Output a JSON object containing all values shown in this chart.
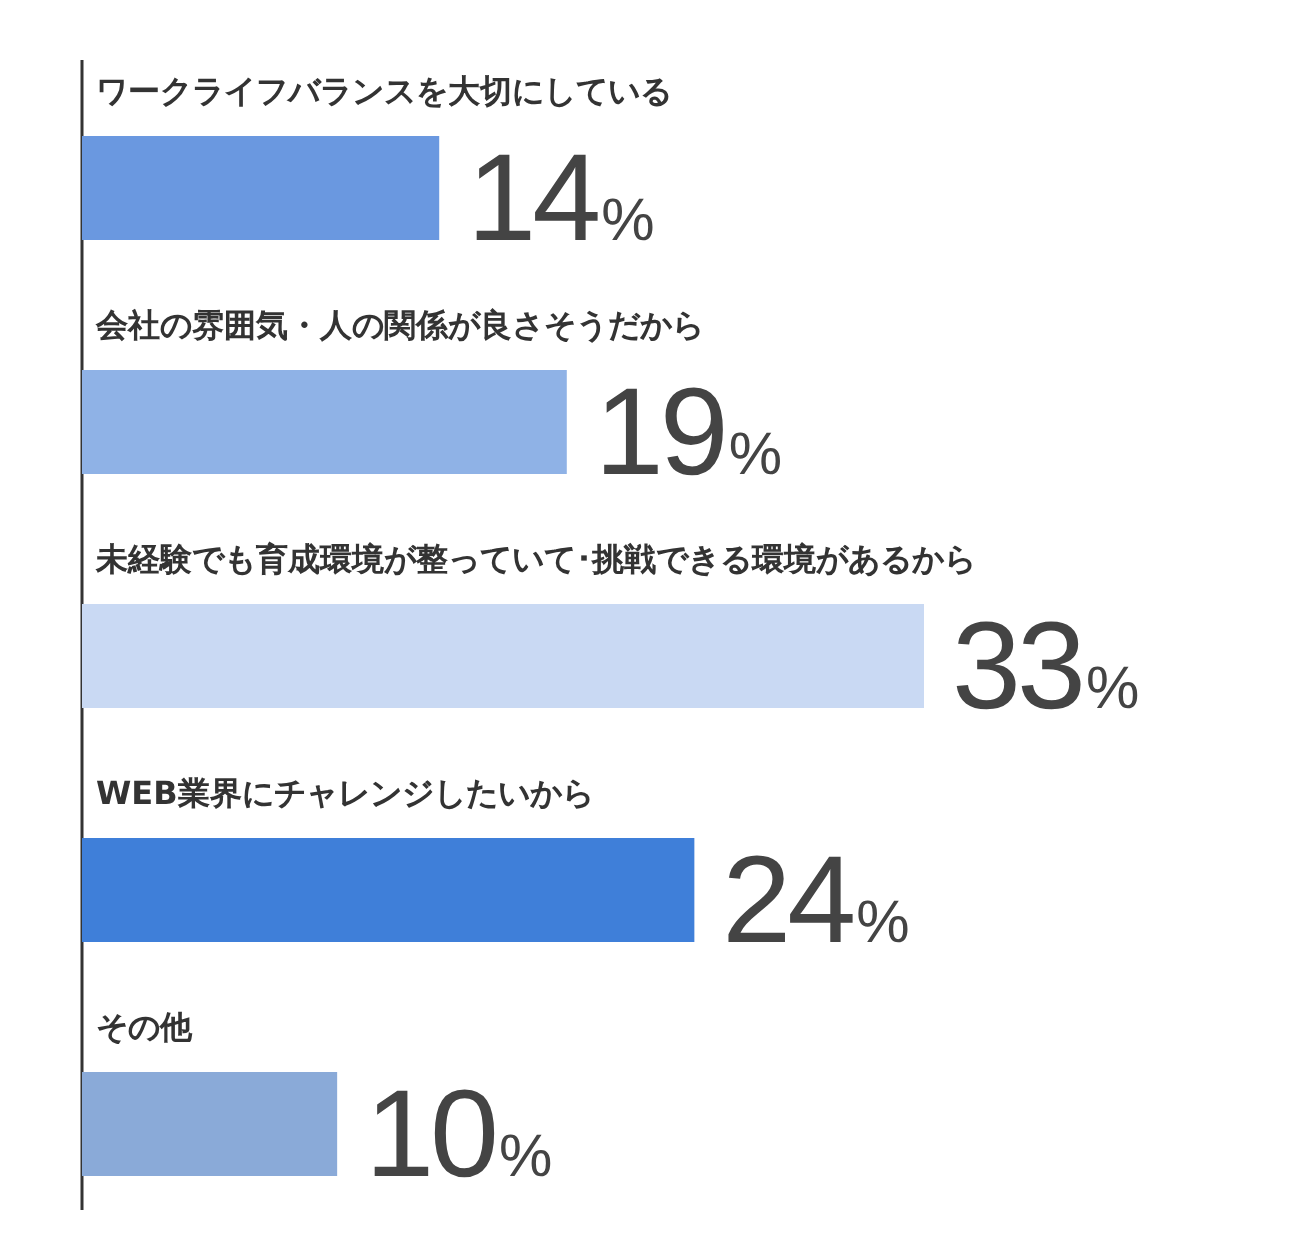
{
  "chart_data": {
    "type": "bar",
    "orientation": "horizontal",
    "categories": [
      "ワークライフバランスを大切にしている",
      "会社の雰囲気・人の関係が良さそうだから",
      "未経験でも育成環境が整っていて･挑戦できる環境があるから",
      "WEB業界にチャレンジしたいから",
      "その他"
    ],
    "values": [
      14,
      19,
      33,
      24,
      10
    ],
    "colors": [
      "#6a98e0",
      "#8fb2e6",
      "#c9d9f3",
      "#3f7fd9",
      "#8aaad8"
    ],
    "value_labels": [
      "14%",
      "19%",
      "33%",
      "24%",
      "10%"
    ]
  }
}
